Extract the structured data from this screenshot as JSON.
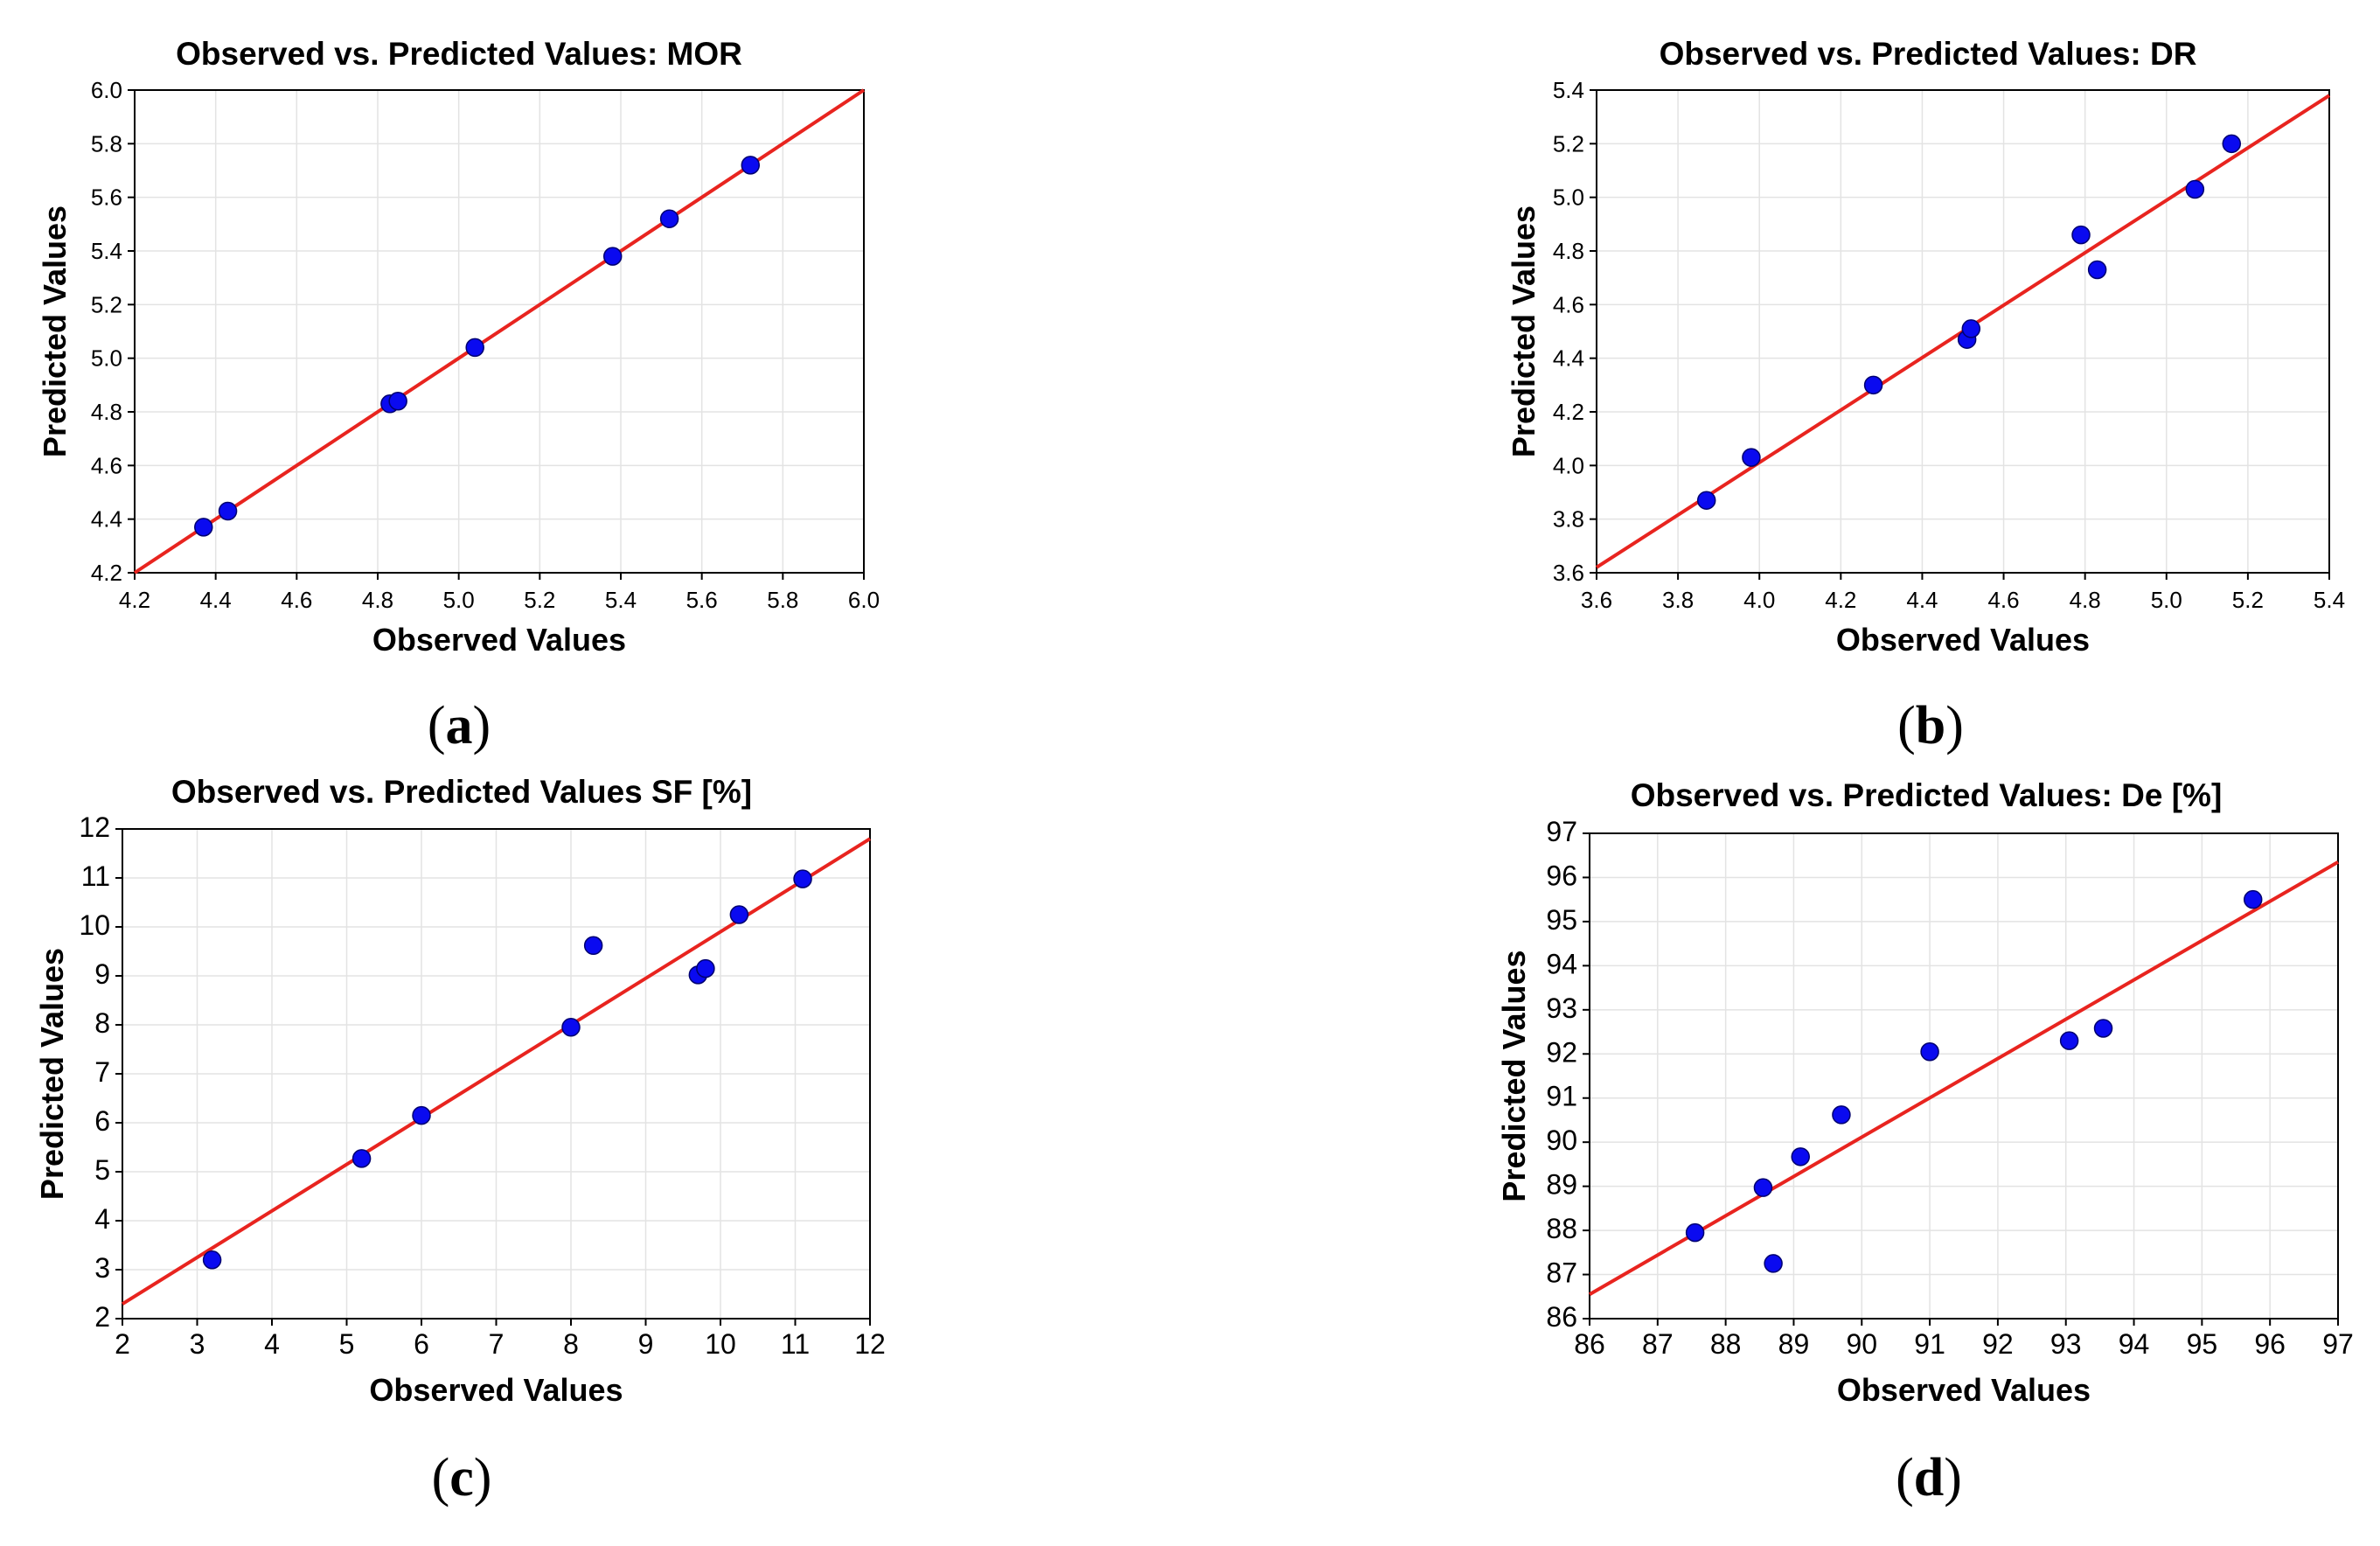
{
  "chart_data": [
    {
      "panel": "a",
      "type": "scatter",
      "title": "Observed vs. Predicted Values: MOR",
      "xlabel": "Observed Values",
      "ylabel": "Predicted Values",
      "caption": "(a)",
      "xlim": [
        4.2,
        6.0
      ],
      "ylim": [
        4.2,
        6.0
      ],
      "xticks": [
        "4.2",
        "4.4",
        "4.6",
        "4.8",
        "5.0",
        "5.2",
        "5.4",
        "5.6",
        "5.8",
        "6.0"
      ],
      "yticks": [
        "4.2",
        "4.4",
        "4.6",
        "4.8",
        "5.0",
        "5.2",
        "5.4",
        "5.6",
        "5.8",
        "6.0"
      ],
      "grid": true,
      "fit_line": {
        "x": [
          4.2,
          6.0
        ],
        "y": [
          4.2,
          6.0
        ],
        "color": "#e8241f"
      },
      "point_color": "#0a0af0",
      "points": [
        {
          "x": 4.37,
          "y": 4.37
        },
        {
          "x": 4.43,
          "y": 4.43
        },
        {
          "x": 4.83,
          "y": 4.83
        },
        {
          "x": 4.85,
          "y": 4.84
        },
        {
          "x": 5.04,
          "y": 5.04
        },
        {
          "x": 5.38,
          "y": 5.38
        },
        {
          "x": 5.52,
          "y": 5.52
        },
        {
          "x": 5.72,
          "y": 5.72
        }
      ]
    },
    {
      "panel": "b",
      "type": "scatter",
      "title": "Observed vs. Predicted Values: DR",
      "xlabel": "Observed Values",
      "ylabel": "Predicted Values",
      "caption": "(b)",
      "xlim": [
        3.6,
        5.4
      ],
      "ylim": [
        3.6,
        5.4
      ],
      "xticks": [
        "3.6",
        "3.8",
        "4.0",
        "4.2",
        "4.4",
        "4.6",
        "4.8",
        "5.0",
        "5.2",
        "5.4"
      ],
      "yticks": [
        "3.6",
        "3.8",
        "4.0",
        "4.2",
        "4.4",
        "4.6",
        "4.8",
        "5.0",
        "5.2",
        "5.4"
      ],
      "grid": true,
      "fit_line": {
        "x": [
          3.6,
          5.4
        ],
        "y": [
          3.62,
          5.38
        ],
        "color": "#e8241f"
      },
      "point_color": "#0a0af0",
      "points": [
        {
          "x": 3.87,
          "y": 3.87
        },
        {
          "x": 3.98,
          "y": 4.03
        },
        {
          "x": 4.28,
          "y": 4.3
        },
        {
          "x": 4.51,
          "y": 4.47
        },
        {
          "x": 4.52,
          "y": 4.51
        },
        {
          "x": 4.79,
          "y": 4.86
        },
        {
          "x": 4.83,
          "y": 4.73
        },
        {
          "x": 5.07,
          "y": 5.03
        },
        {
          "x": 5.16,
          "y": 5.2
        }
      ]
    },
    {
      "panel": "c",
      "type": "scatter",
      "title": "Observed vs. Predicted Values SF [%]",
      "xlabel": "Observed Values",
      "ylabel": "Predicted Values",
      "caption": "(c)",
      "xlim": [
        2,
        12
      ],
      "ylim": [
        2,
        12
      ],
      "xticks": [
        "2",
        "3",
        "4",
        "5",
        "6",
        "7",
        "8",
        "9",
        "10",
        "11",
        "12"
      ],
      "yticks": [
        "2",
        "3",
        "4",
        "5",
        "6",
        "7",
        "8",
        "9",
        "10",
        "11",
        "12"
      ],
      "grid": true,
      "fit_line": {
        "x": [
          2,
          12
        ],
        "y": [
          2.3,
          11.8
        ],
        "color": "#e8241f"
      },
      "point_color": "#0a0af0",
      "points": [
        {
          "x": 3.2,
          "y": 3.2
        },
        {
          "x": 5.2,
          "y": 5.27
        },
        {
          "x": 6.0,
          "y": 6.15
        },
        {
          "x": 8.0,
          "y": 7.95
        },
        {
          "x": 8.3,
          "y": 9.62
        },
        {
          "x": 9.7,
          "y": 9.02
        },
        {
          "x": 9.8,
          "y": 9.15
        },
        {
          "x": 10.25,
          "y": 10.25
        },
        {
          "x": 11.1,
          "y": 10.98
        }
      ]
    },
    {
      "panel": "d",
      "type": "scatter",
      "title": "Observed vs. Predicted Values: De [%]",
      "xlabel": "Observed Values",
      "ylabel": "Predicted Values",
      "caption": "(d)",
      "xlim": [
        86,
        97
      ],
      "ylim": [
        86,
        97
      ],
      "xticks": [
        "86",
        "87",
        "88",
        "89",
        "90",
        "91",
        "92",
        "93",
        "94",
        "95",
        "96",
        "97"
      ],
      "yticks": [
        "86",
        "87",
        "88",
        "89",
        "90",
        "91",
        "92",
        "93",
        "94",
        "95",
        "96",
        "97"
      ],
      "grid": true,
      "fit_line": {
        "x": [
          86,
          97
        ],
        "y": [
          86.55,
          96.35
        ],
        "color": "#e8241f"
      },
      "point_color": "#0a0af0",
      "points": [
        {
          "x": 87.55,
          "y": 87.95
        },
        {
          "x": 88.55,
          "y": 88.97
        },
        {
          "x": 88.7,
          "y": 87.25
        },
        {
          "x": 89.1,
          "y": 89.67
        },
        {
          "x": 89.7,
          "y": 90.62
        },
        {
          "x": 91.0,
          "y": 92.05
        },
        {
          "x": 93.05,
          "y": 92.3
        },
        {
          "x": 93.55,
          "y": 92.58
        },
        {
          "x": 95.75,
          "y": 95.5
        }
      ]
    }
  ]
}
